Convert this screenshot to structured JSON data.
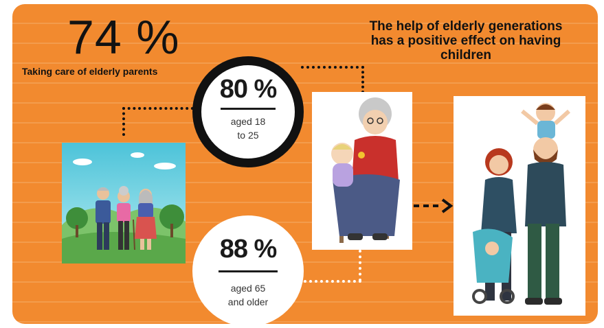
{
  "stat_main": {
    "value": "74 %",
    "label": "Taking care of elderly parents"
  },
  "headline": [
    "The help of elderly generations",
    "has a positive effect on having",
    "children"
  ],
  "stat_young": {
    "value": "80 %",
    "line1": "aged 18",
    "line2": "to 25"
  },
  "stat_old": {
    "value": "88 %",
    "line1": "aged 65",
    "line2": "and older"
  },
  "colors": {
    "background": "#f28a2f",
    "stripe": "#f39c4d",
    "text": "#111111",
    "white": "#ffffff"
  },
  "illustrations": [
    "grandparents-outdoors",
    "grandma-with-baby",
    "young-family"
  ]
}
